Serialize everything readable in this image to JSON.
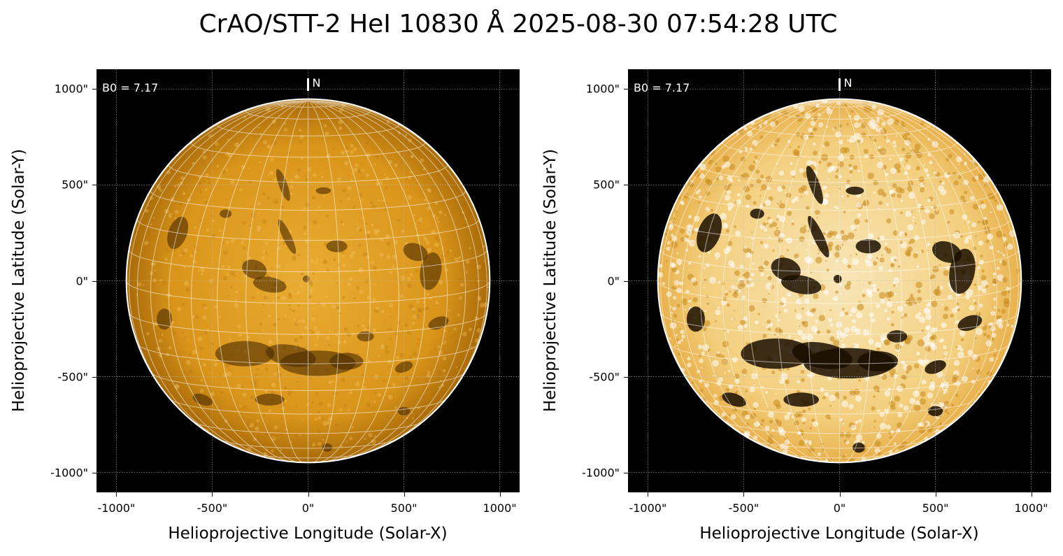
{
  "title": "CrAO/STT-2 HeI 10830 Å 2025-08-30 07:54:28 UTC",
  "colors": {
    "disk_light": "#e9a92a",
    "disk_dark": "#a86a08",
    "limb": "#ffffff",
    "background": "#000000"
  },
  "panels": [
    {
      "id": "left",
      "b0_label": "B0 = 7.17",
      "north_label": "N",
      "xlabel": "Helioprojective Longitude (Solar-X)",
      "ylabel": "Helioprojective Latitude (Solar-Y)",
      "x_ticks": [
        "-1000\"",
        "-500\"",
        "0\"",
        "500\"",
        "1000\""
      ],
      "y_ticks": [
        "1000\"",
        "500\"",
        "0\"",
        "-500\"",
        "-1000\""
      ],
      "contrast": "normal"
    },
    {
      "id": "right",
      "b0_label": "B0 = 7.17",
      "north_label": "N",
      "xlabel": "Helioprojective Longitude (Solar-X)",
      "ylabel": "Helioprojective Latitude (Solar-Y)",
      "x_ticks": [
        "-1000\"",
        "-500\"",
        "0\"",
        "500\"",
        "1000\""
      ],
      "y_ticks": [
        "1000\"",
        "500\"",
        "0\"",
        "-500\"",
        "-1000\""
      ],
      "contrast": "enhanced"
    }
  ],
  "axes": {
    "x_range": [
      -1100,
      1100
    ],
    "y_range": [
      -1100,
      1100
    ],
    "tick_values": [
      -1000,
      -500,
      0,
      500,
      1000
    ],
    "solar_radius_arcsec": 948,
    "b0_degrees": 7.17,
    "grid": true
  }
}
